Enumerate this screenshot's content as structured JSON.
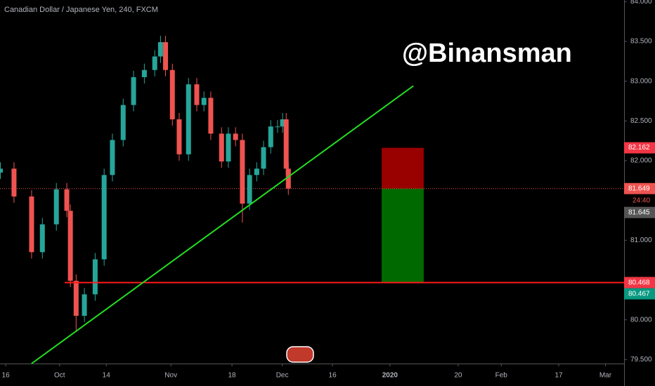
{
  "chart_data": {
    "type": "candlestick",
    "title": "Canadian Dollar / Japanese Yen, 240, FXCM",
    "watermark": "@Binansman",
    "up_color": "#26a69a",
    "down_color": "#ef5350",
    "x": [
      -1.5,
      2.3,
      7.2,
      10.2,
      14.1,
      17.0,
      18.0,
      19.6,
      21.9,
      24.9,
      27.4,
      29.7,
      32.7,
      35.6,
      38.6,
      41.5,
      43.1,
      44.5,
      46.4,
      48.3,
      50.9,
      53.2,
      55.2,
      57.1,
      60.1,
      62.0,
      64.0,
      65.9,
      67.9,
      69.9,
      71.8,
      73.8,
      75.7,
      77.1,
      78.1,
      78.7
    ],
    "open": [
      81.85,
      81.9,
      81.55,
      80.85,
      81.2,
      81.64,
      81.37,
      80.49,
      80.05,
      80.32,
      80.76,
      81.82,
      82.26,
      82.7,
      83.05,
      83.14,
      83.31,
      83.49,
      83.14,
      82.52,
      82.08,
      82.96,
      82.7,
      82.79,
      82.34,
      81.99,
      82.34,
      82.26,
      81.46,
      81.82,
      81.9,
      82.17,
      82.43,
      82.43,
      82.52,
      81.9
    ],
    "high": [
      81.98,
      81.98,
      81.63,
      81.28,
      81.72,
      81.72,
      81.45,
      80.57,
      80.4,
      80.84,
      81.9,
      82.34,
      82.78,
      83.13,
      83.22,
      83.39,
      83.57,
      83.57,
      83.22,
      82.6,
      83.04,
      83.04,
      82.87,
      82.87,
      82.42,
      82.42,
      82.42,
      82.34,
      81.9,
      81.98,
      82.25,
      82.51,
      82.51,
      82.6,
      82.6,
      81.98
    ],
    "low": [
      81.77,
      81.47,
      80.77,
      80.77,
      81.12,
      81.29,
      80.41,
      79.85,
      79.97,
      80.24,
      80.68,
      81.74,
      82.18,
      82.62,
      82.97,
      83.06,
      83.23,
      83.06,
      82.44,
      82.0,
      82.0,
      82.62,
      82.62,
      82.26,
      81.91,
      81.91,
      82.18,
      81.22,
      81.38,
      81.74,
      81.82,
      82.09,
      82.35,
      82.35,
      81.82,
      81.57
    ],
    "close": [
      81.9,
      81.55,
      80.85,
      81.2,
      81.64,
      81.37,
      80.49,
      80.05,
      80.32,
      80.76,
      81.82,
      82.26,
      82.7,
      83.05,
      83.14,
      83.31,
      83.49,
      83.14,
      82.52,
      82.08,
      82.96,
      82.7,
      82.79,
      82.34,
      81.99,
      82.34,
      82.26,
      81.46,
      81.82,
      81.9,
      82.17,
      82.43,
      82.43,
      82.52,
      81.9,
      81.65
    ],
    "xlim": [
      -1.6,
      172.2
    ],
    "ylim": [
      79.45,
      84.02
    ],
    "xticks": [
      {
        "value": 0,
        "label": "16"
      },
      {
        "value": 15,
        "label": "Oct"
      },
      {
        "value": 28,
        "label": "14"
      },
      {
        "value": 46,
        "label": "Nov"
      },
      {
        "value": 63,
        "label": "18"
      },
      {
        "value": 77,
        "label": "Dec"
      },
      {
        "value": 91,
        "label": "16"
      },
      {
        "value": 107,
        "label": "2020"
      },
      {
        "value": 126,
        "label": "20"
      },
      {
        "value": 138,
        "label": "Feb"
      },
      {
        "value": 154,
        "label": "17"
      },
      {
        "value": 167,
        "label": "Mar"
      }
    ],
    "yticks": [
      {
        "value": 79.5,
        "label": "79.500"
      },
      {
        "value": 80,
        "label": "80.000"
      },
      {
        "value": 80.5,
        "label": "80.500"
      },
      {
        "value": 81,
        "label": "81.000"
      },
      {
        "value": 81.5,
        "label": "81.500"
      },
      {
        "value": 82,
        "label": "82.000"
      },
      {
        "value": 82.5,
        "label": "82.500"
      },
      {
        "value": 83,
        "label": "83.000"
      },
      {
        "value": 83.5,
        "label": "83.500"
      },
      {
        "value": 84,
        "label": "84.000"
      }
    ],
    "trendline": {
      "x": [
        7.2,
        113.5
      ],
      "y": [
        79.45,
        82.94
      ],
      "color": "#22dd22"
    },
    "hline": {
      "value": 80.468,
      "x_start": 16.4,
      "color": "#ff1a1a"
    },
    "price_line": {
      "value": 81.649,
      "color": "#ef5350"
    },
    "position": {
      "x": [
        104.7,
        116.4
      ],
      "stop": 82.162,
      "entry": 81.649,
      "target": 80.468,
      "stop_color": "#990000",
      "target_color": "#006a00"
    },
    "price_labels": [
      {
        "value": 82.162,
        "label": "82.162",
        "color": "#f23645"
      },
      {
        "value": 81.649,
        "label": "81.649",
        "color": "#ef5350",
        "countdown": "24:40"
      },
      {
        "value": 81.645,
        "label": "81.645",
        "color": "#555555"
      },
      {
        "value": 80.468,
        "label": "80.468",
        "color": "#f23645"
      },
      {
        "value": 80.467,
        "label": "80.467",
        "color": "#089981"
      }
    ]
  }
}
